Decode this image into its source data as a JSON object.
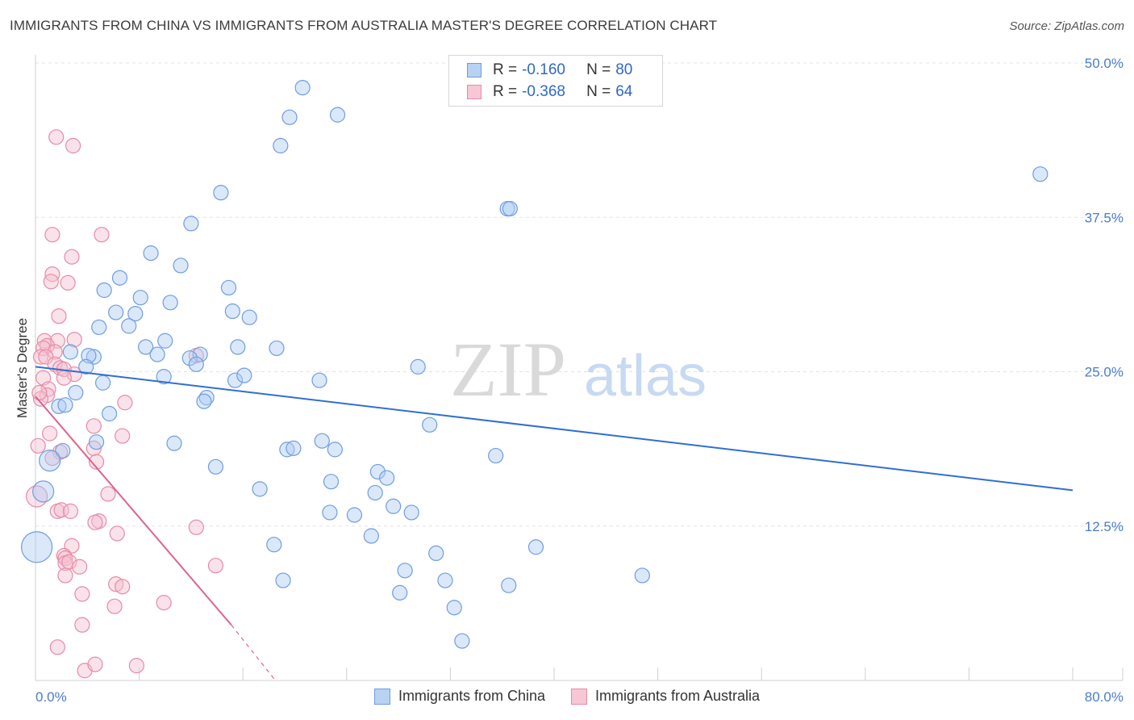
{
  "header": {
    "title": "IMMIGRANTS FROM CHINA VS IMMIGRANTS FROM AUSTRALIA MASTER'S DEGREE CORRELATION CHART",
    "source": "Source: ZipAtlas.com"
  },
  "watermark": {
    "zip": "ZIP",
    "atlas": "atlas"
  },
  "colors": {
    "china": "#6f9de0",
    "china_fill": "#aecbf3",
    "china_line": "#2f6fd0",
    "australia": "#e88aa6",
    "australia_fill": "#f5bfd0",
    "australia_line": "#e0628a",
    "grid": "#e3e3e3",
    "tick_text": "#4a7ccc"
  },
  "legend_top": {
    "rows": [
      {
        "r_label": "R =",
        "r_value": "-0.160",
        "n_label": "N =",
        "n_value": "80"
      },
      {
        "r_label": "R =",
        "r_value": "-0.368",
        "n_label": "N =",
        "n_value": "64"
      }
    ]
  },
  "legend_bottom": {
    "china": "Immigrants from China",
    "australia": "Immigrants from Australia"
  },
  "chart_data": {
    "type": "scatter",
    "title": "IMMIGRANTS FROM CHINA VS IMMIGRANTS FROM AUSTRALIA MASTER'S DEGREE CORRELATION CHART",
    "xlabel": "",
    "ylabel": "Master's Degree",
    "xlim": [
      0,
      80
    ],
    "ylim": [
      0,
      50
    ],
    "x_tick_labels": [
      "0.0%",
      "80.0%"
    ],
    "y_tick_values": [
      12.5,
      25.0,
      37.5,
      50.0
    ],
    "y_tick_labels": [
      "12.5%",
      "25.0%",
      "37.5%",
      "50.0%"
    ],
    "series": [
      {
        "name": "Immigrants from China",
        "r": -0.16,
        "n": 80,
        "trend": {
          "x": [
            0,
            80
          ],
          "y": [
            25.4,
            15.4
          ]
        },
        "points": [
          [
            20.6,
            48.0
          ],
          [
            19.6,
            45.6
          ],
          [
            23.3,
            45.8
          ],
          [
            18.9,
            43.3
          ],
          [
            14.3,
            39.5
          ],
          [
            36.4,
            38.2
          ],
          [
            77.5,
            41.0
          ],
          [
            12.0,
            37.0
          ],
          [
            8.9,
            34.6
          ],
          [
            11.2,
            33.6
          ],
          [
            6.5,
            32.6
          ],
          [
            5.3,
            31.6
          ],
          [
            8.1,
            31.0
          ],
          [
            14.9,
            31.8
          ],
          [
            10.4,
            30.6
          ],
          [
            6.2,
            29.8
          ],
          [
            7.7,
            29.7
          ],
          [
            15.2,
            29.9
          ],
          [
            16.5,
            29.4
          ],
          [
            4.9,
            28.6
          ],
          [
            7.2,
            28.7
          ],
          [
            10.0,
            27.5
          ],
          [
            8.5,
            27.0
          ],
          [
            15.6,
            27.0
          ],
          [
            18.6,
            26.9
          ],
          [
            9.4,
            26.4
          ],
          [
            12.7,
            26.4
          ],
          [
            2.7,
            26.6
          ],
          [
            4.5,
            26.2
          ],
          [
            4.1,
            26.3
          ],
          [
            11.9,
            26.1
          ],
          [
            12.4,
            25.6
          ],
          [
            5.2,
            24.1
          ],
          [
            3.9,
            25.4
          ],
          [
            9.9,
            24.6
          ],
          [
            15.4,
            24.3
          ],
          [
            16.1,
            24.7
          ],
          [
            21.9,
            24.3
          ],
          [
            29.5,
            25.4
          ],
          [
            3.1,
            23.3
          ],
          [
            13.2,
            22.9
          ],
          [
            13.0,
            22.6
          ],
          [
            1.8,
            22.2
          ],
          [
            2.3,
            22.3
          ],
          [
            5.7,
            21.6
          ],
          [
            30.4,
            20.7
          ],
          [
            4.7,
            19.3
          ],
          [
            10.7,
            19.2
          ],
          [
            22.1,
            19.4
          ],
          [
            19.4,
            18.7
          ],
          [
            19.9,
            18.8
          ],
          [
            23.1,
            18.7
          ],
          [
            35.5,
            18.2
          ],
          [
            2.1,
            18.6
          ],
          [
            1.1,
            17.8
          ],
          [
            13.9,
            17.3
          ],
          [
            26.4,
            16.9
          ],
          [
            27.1,
            16.4
          ],
          [
            22.8,
            16.1
          ],
          [
            17.3,
            15.5
          ],
          [
            26.2,
            15.2
          ],
          [
            0.6,
            15.3
          ],
          [
            27.6,
            14.1
          ],
          [
            29.0,
            13.6
          ],
          [
            22.7,
            13.6
          ],
          [
            24.6,
            13.4
          ],
          [
            25.9,
            11.7
          ],
          [
            18.4,
            11.0
          ],
          [
            38.6,
            10.8
          ],
          [
            30.9,
            10.3
          ],
          [
            0.1,
            10.8
          ],
          [
            28.5,
            8.9
          ],
          [
            19.1,
            8.1
          ],
          [
            31.6,
            8.1
          ],
          [
            36.5,
            7.7
          ],
          [
            46.8,
            8.5
          ],
          [
            28.1,
            7.1
          ],
          [
            32.3,
            5.9
          ],
          [
            32.9,
            3.2
          ],
          [
            36.6,
            38.2
          ]
        ]
      },
      {
        "name": "Immigrants from Australia",
        "r": -0.368,
        "n": 64,
        "trend": {
          "x": [
            0,
            15.1
          ],
          "y": [
            23.0,
            4.5
          ],
          "dashed_to": [
            18.5,
            0
          ]
        },
        "points": [
          [
            1.6,
            44.0
          ],
          [
            2.9,
            43.3
          ],
          [
            1.3,
            36.1
          ],
          [
            5.1,
            36.1
          ],
          [
            2.8,
            34.3
          ],
          [
            1.3,
            32.9
          ],
          [
            1.2,
            32.3
          ],
          [
            2.5,
            32.2
          ],
          [
            1.8,
            29.5
          ],
          [
            0.7,
            27.5
          ],
          [
            1.7,
            27.5
          ],
          [
            3.0,
            27.6
          ],
          [
            0.9,
            27.1
          ],
          [
            0.6,
            26.9
          ],
          [
            1.5,
            26.6
          ],
          [
            0.4,
            26.2
          ],
          [
            12.4,
            26.3
          ],
          [
            0.8,
            26.2
          ],
          [
            1.5,
            25.6
          ],
          [
            1.9,
            25.3
          ],
          [
            2.2,
            25.2
          ],
          [
            3.0,
            24.8
          ],
          [
            0.6,
            24.5
          ],
          [
            2.2,
            24.5
          ],
          [
            1.0,
            23.6
          ],
          [
            0.9,
            23.1
          ],
          [
            0.4,
            22.8
          ],
          [
            6.9,
            22.5
          ],
          [
            4.5,
            20.6
          ],
          [
            6.7,
            19.8
          ],
          [
            1.1,
            20.0
          ],
          [
            0.2,
            19.0
          ],
          [
            4.5,
            18.8
          ],
          [
            1.9,
            18.5
          ],
          [
            1.3,
            18.0
          ],
          [
            4.7,
            17.7
          ],
          [
            5.6,
            15.1
          ],
          [
            0.1,
            14.9
          ],
          [
            1.7,
            13.7
          ],
          [
            2.0,
            13.8
          ],
          [
            2.7,
            13.7
          ],
          [
            4.9,
            12.9
          ],
          [
            4.6,
            12.8
          ],
          [
            12.4,
            12.4
          ],
          [
            6.3,
            11.9
          ],
          [
            2.8,
            10.9
          ],
          [
            2.2,
            10.1
          ],
          [
            2.3,
            9.9
          ],
          [
            2.3,
            9.5
          ],
          [
            2.6,
            9.6
          ],
          [
            3.4,
            9.2
          ],
          [
            13.9,
            9.3
          ],
          [
            2.3,
            8.5
          ],
          [
            6.2,
            7.8
          ],
          [
            6.7,
            7.6
          ],
          [
            3.6,
            7.0
          ],
          [
            6.1,
            6.0
          ],
          [
            9.9,
            6.3
          ],
          [
            3.6,
            4.5
          ],
          [
            1.7,
            2.7
          ],
          [
            3.8,
            0.8
          ],
          [
            4.6,
            1.3
          ],
          [
            7.8,
            1.2
          ],
          [
            0.3,
            23.3
          ]
        ]
      }
    ],
    "bubble_sizes": {
      "china": {
        "0.1,10.8": "large",
        "0.6,15.3": "medium",
        "1.1,17.8": "medium"
      },
      "australia": {
        "0.2,19.0": "medium",
        "0.1,14.9": "medium"
      }
    }
  }
}
